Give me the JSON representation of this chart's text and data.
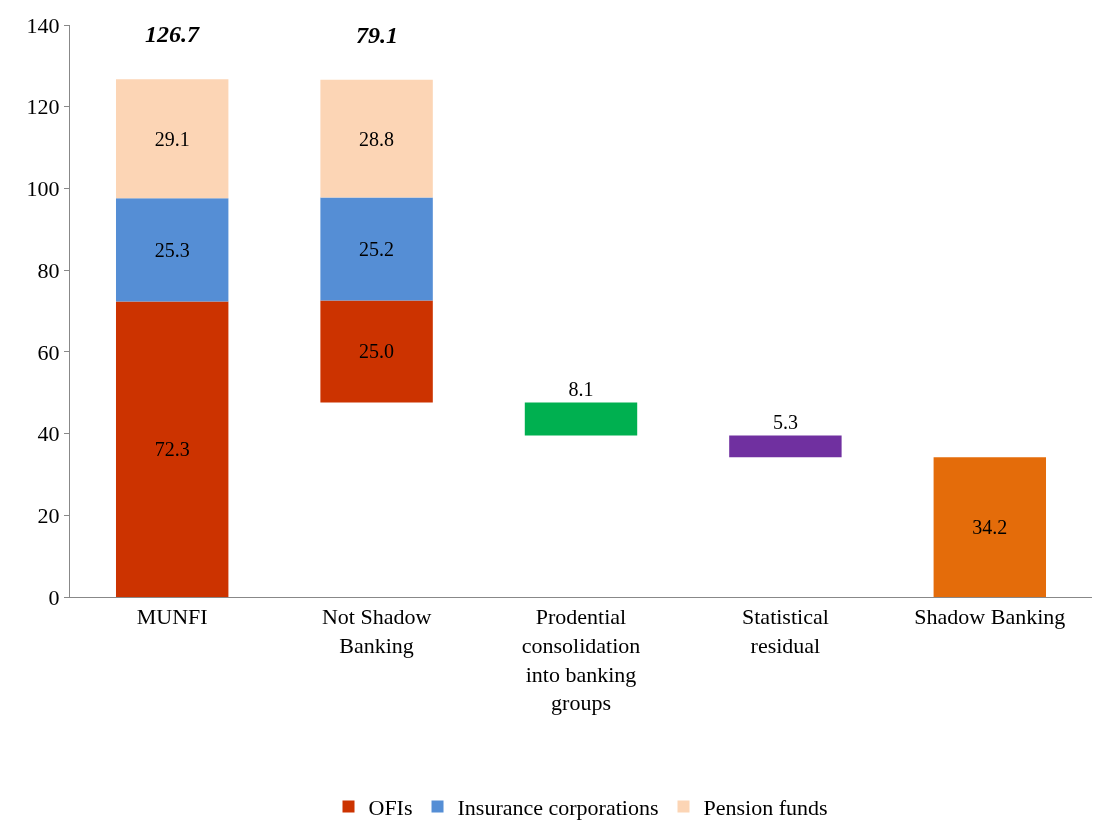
{
  "chart_data": {
    "type": "bar",
    "categories": [
      "MUNFI",
      "Not Shadow Banking",
      "Prodential consolidation into banking groups",
      "Statistical residual",
      "Shadow Banking"
    ],
    "series": [
      {
        "name": "OFIs",
        "color": "#cc3300",
        "values": [
          72.3,
          25.0,
          null,
          null,
          null
        ],
        "value_labels": [
          "72.3",
          "25.0",
          null,
          null,
          null
        ],
        "base": [
          0,
          47.6,
          null,
          null,
          null
        ]
      },
      {
        "name": "Insurance corporations",
        "color": "#558ed5",
        "values": [
          25.3,
          25.2,
          null,
          null,
          null
        ],
        "base": [
          72.3,
          72.6,
          null,
          null,
          null
        ]
      },
      {
        "name": "Pension funds",
        "color": "#fcd5b5",
        "values": [
          29.1,
          28.8,
          null,
          null,
          null
        ],
        "base": [
          97.6,
          97.8,
          null,
          null,
          null
        ]
      },
      {
        "color": "#00b050",
        "values": [
          null,
          null,
          8.1,
          null,
          null
        ],
        "base": [
          null,
          null,
          39.5,
          null,
          null
        ]
      },
      {
        "color": "#7030a0",
        "values": [
          null,
          null,
          null,
          5.3,
          null
        ],
        "base": [
          null,
          null,
          null,
          34.2,
          null
        ]
      },
      {
        "color": "#e46c0a",
        "values": [
          null,
          null,
          null,
          null,
          34.2
        ],
        "base": [
          null,
          null,
          null,
          null,
          0
        ]
      }
    ],
    "annotations": [
      "126.7",
      "79.1"
    ],
    "data_labels": true,
    "ylim": [
      0,
      140
    ],
    "yticks": [
      0,
      20,
      40,
      60,
      80,
      100,
      120,
      140
    ],
    "legend": "bottom"
  }
}
